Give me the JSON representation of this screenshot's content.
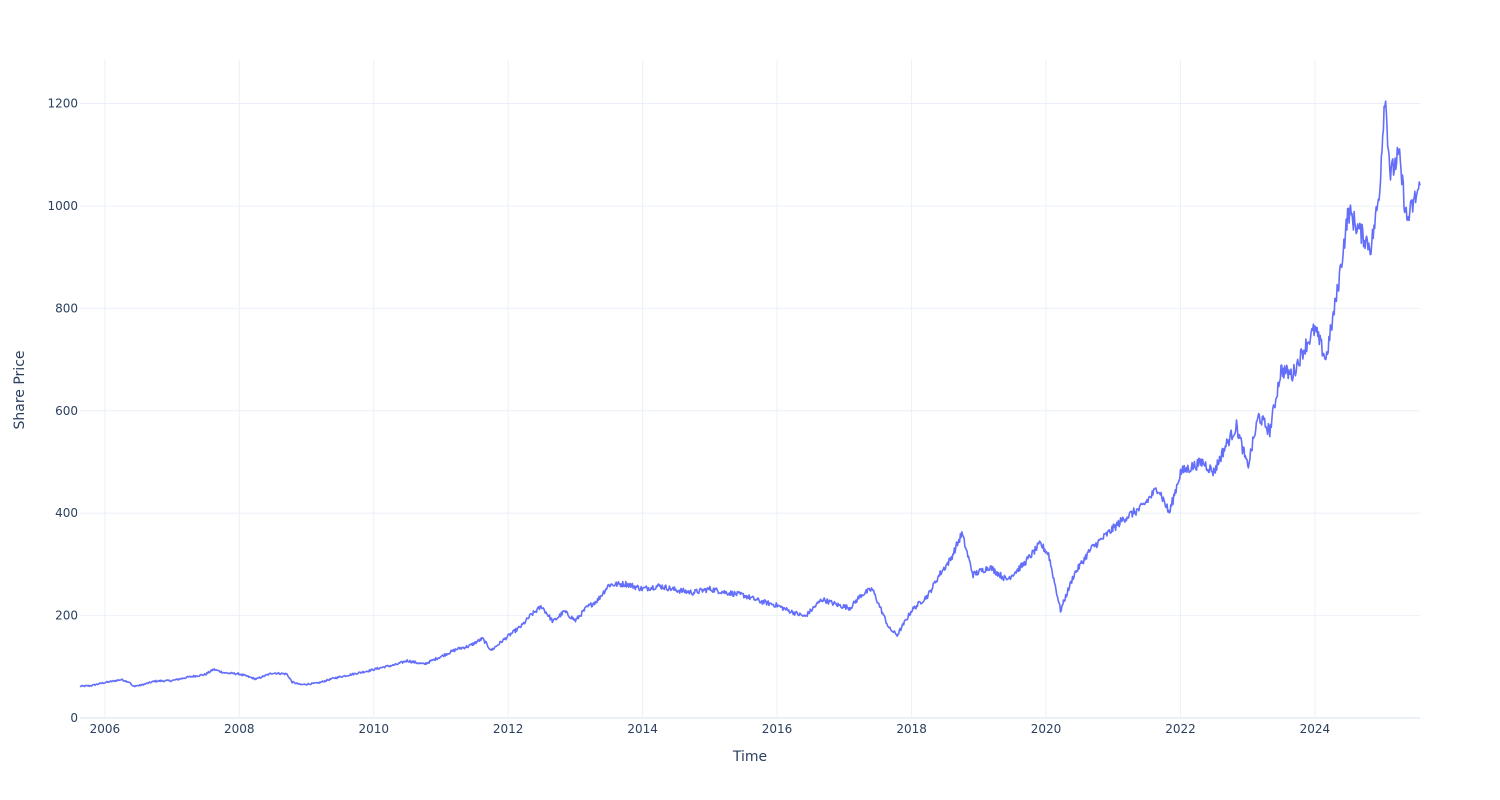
{
  "chart_data": {
    "type": "line",
    "xlabel": "Time",
    "ylabel": "Share Price",
    "xlim": [
      "2005-08-19",
      "2025-07-25"
    ],
    "ylim": [
      0,
      1285
    ],
    "x_ticks": [
      "2006",
      "2008",
      "2010",
      "2012",
      "2014",
      "2016",
      "2018",
      "2020",
      "2022",
      "2024"
    ],
    "y_ticks": [
      "0",
      "200",
      "400",
      "600",
      "800",
      "1000",
      "1200"
    ],
    "grid": true,
    "legend": "none",
    "colors": {
      "line": "#636efa",
      "grid": "#ebf0f8",
      "zeroline": "#ebf0f8",
      "text": "#2a3f5f"
    },
    "series": [
      {
        "x": [
          "2005-08-19",
          "2005-10-15",
          "2005-12-15",
          "2006-02-15",
          "2006-04-01",
          "2006-05-15",
          "2006-06-01",
          "2006-07-15",
          "2006-10-01",
          "2007-01-01",
          "2007-04-01",
          "2007-07-01",
          "2007-08-15",
          "2007-10-15",
          "2008-01-01",
          "2008-04-01",
          "2008-07-01",
          "2008-09-15",
          "2008-10-15",
          "2008-12-01",
          "2009-03-01",
          "2009-06-01",
          "2009-09-01",
          "2009-12-01",
          "2010-03-01",
          "2010-05-01",
          "2010-07-01",
          "2010-10-01",
          "2011-01-01",
          "2011-04-01",
          "2011-06-01",
          "2011-08-15",
          "2011-10-01",
          "2012-01-01",
          "2012-03-15",
          "2012-05-01",
          "2012-07-01",
          "2012-09-01",
          "2012-11-01",
          "2013-01-01",
          "2013-03-01",
          "2013-05-01",
          "2013-07-01",
          "2013-10-01",
          "2014-01-01",
          "2014-04-01",
          "2014-07-01",
          "2014-10-01",
          "2015-01-01",
          "2015-04-01",
          "2015-07-01",
          "2015-10-01",
          "2016-01-01",
          "2016-03-01",
          "2016-06-01",
          "2016-09-01",
          "2016-12-01",
          "2017-02-01",
          "2017-04-01",
          "2017-06-01",
          "2017-09-01",
          "2017-10-15",
          "2018-01-01",
          "2018-04-01",
          "2018-06-01",
          "2018-08-01",
          "2018-10-01",
          "2018-12-01",
          "2019-03-01",
          "2019-06-01",
          "2019-09-01",
          "2019-12-01",
          "2020-01-15",
          "2020-03-20",
          "2020-06-01",
          "2020-09-01",
          "2020-12-01",
          "2021-03-01",
          "2021-06-01",
          "2021-09-01",
          "2021-11-01",
          "2022-01-01",
          "2022-03-01",
          "2022-05-01",
          "2022-07-01",
          "2022-09-01",
          "2022-11-01",
          "2023-01-01",
          "2023-03-01",
          "2023-05-01",
          "2023-07-01",
          "2023-09-01",
          "2023-11-01",
          "2024-01-01",
          "2024-03-01",
          "2024-05-01",
          "2024-07-01",
          "2024-09-01",
          "2024-11-01",
          "2024-12-15",
          "2025-01-15",
          "2025-02-15",
          "2025-04-01",
          "2025-05-15",
          "2025-07-25"
        ],
        "values": [
          62,
          63,
          68,
          72,
          75,
          70,
          62,
          64,
          72,
          73,
          80,
          85,
          95,
          88,
          86,
          76,
          88,
          86,
          70,
          65,
          68,
          78,
          85,
          92,
          100,
          104,
          112,
          105,
          120,
          135,
          140,
          155,
          132,
          160,
          180,
          200,
          218,
          188,
          208,
          190,
          215,
          230,
          260,
          262,
          252,
          258,
          250,
          245,
          252,
          245,
          240,
          228,
          220,
          210,
          198,
          232,
          220,
          215,
          240,
          252,
          175,
          162,
          210,
          240,
          280,
          310,
          360,
          280,
          295,
          270,
          300,
          340,
          320,
          210,
          280,
          330,
          360,
          390,
          410,
          450,
          400,
          480,
          490,
          500,
          480,
          530,
          570,
          490,
          590,
          560,
          680,
          670,
          720,
          760,
          700,
          830,
          990,
          950,
          920,
          1020,
          1220,
          1060,
          1100,
          970,
          1040
        ]
      }
    ]
  }
}
